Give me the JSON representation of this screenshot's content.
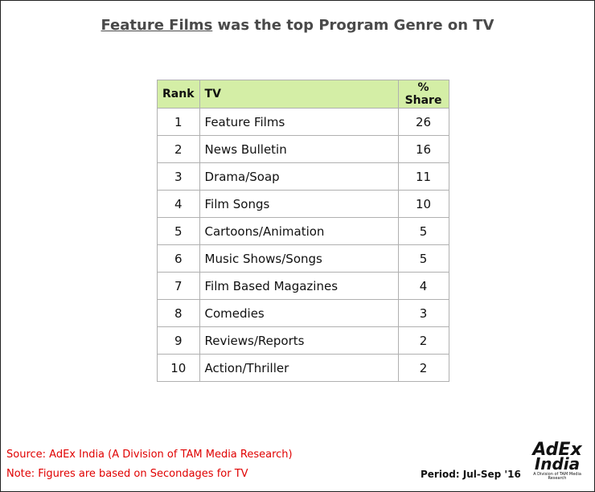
{
  "header": {
    "title_highlight": "Feature Films",
    "title_rest": " was the top Program Genre on TV"
  },
  "table": {
    "columns": [
      "Rank",
      "TV",
      "% Share"
    ],
    "rows": [
      [
        1,
        "Feature Films",
        26
      ],
      [
        2,
        "News Bulletin",
        16
      ],
      [
        3,
        "Drama/Soap",
        11
      ],
      [
        4,
        "Film Songs",
        10
      ],
      [
        5,
        "Cartoons/Animation",
        5
      ],
      [
        6,
        "Music Shows/Songs",
        5
      ],
      [
        7,
        "Film Based Magazines",
        4
      ],
      [
        8,
        "Comedies",
        3
      ],
      [
        9,
        "Reviews/Reports",
        2
      ],
      [
        10,
        "Action/Thriller",
        2
      ]
    ]
  },
  "footer": {
    "source": "Source: AdEx India (A Division of TAM Media Research)",
    "note": "Note: Figures are based on Secondages for TV",
    "period": "Period: Jul-Sep  '16"
  },
  "logo": {
    "line1": "AdEx",
    "line2": "India",
    "tagline": "A Division of TAM Media Research"
  }
}
